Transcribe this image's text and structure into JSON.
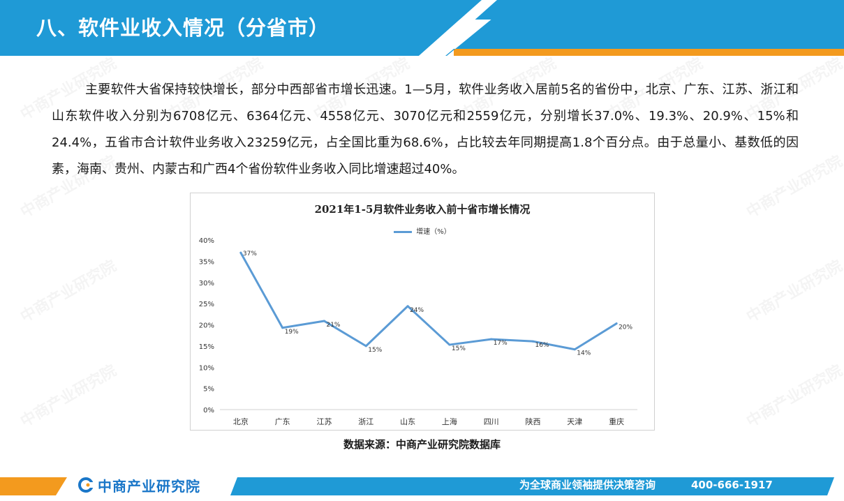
{
  "header": {
    "title": "八、软件业收入情况（分省市）"
  },
  "body": {
    "paragraph": "主要软件大省保持较快增长，部分中西部省市增长迅速。1—5月，软件业务收入居前5名的省份中，北京、广东、江苏、浙江和山东软件收入分别为6708亿元、6364亿元、4558亿元、3070亿元和2559亿元，分别增长37.0%、19.3%、20.9%、15%和24.4%，五省市合计软件业务收入23259亿元，占全国比重为68.6%，占比较去年同期提高1.8个百分点。由于总量小、基数低的因素，海南、贵州、内蒙古和广西4个省份软件业务收入同比增速超过40%。"
  },
  "chart_data": {
    "type": "line",
    "title": "2021年1-5月软件业务收入前十省市增长情况",
    "categories": [
      "北京",
      "广东",
      "江苏",
      "浙江",
      "山东",
      "上海",
      "四川",
      "陕西",
      "天津",
      "重庆"
    ],
    "series": [
      {
        "name": "增速（%）",
        "values": [
          37.0,
          19.3,
          20.9,
          15.0,
          24.4,
          15.3,
          16.6,
          16.1,
          14.2,
          20.3
        ],
        "labels": [
          "37%",
          "19%",
          "21%",
          "15%",
          "24%",
          "15%",
          "17%",
          "16%",
          "14%",
          "20%"
        ],
        "color": "#5b9bd5"
      }
    ],
    "y_ticks": [
      "0%",
      "5%",
      "10%",
      "15%",
      "20%",
      "25%",
      "30%",
      "35%",
      "40%"
    ],
    "ylim": [
      0,
      40
    ],
    "grid": false,
    "legend": "top-center"
  },
  "source": {
    "text": "数据来源：中商产业研究院数据库"
  },
  "footer": {
    "logo_text": "中商产业研究院",
    "slogan": "为全球商业领袖提供决策咨询",
    "phone": "400-666-1917"
  },
  "watermark": {
    "text": "中商产业研究院"
  },
  "colors": {
    "header_blue": "#1f9ad6",
    "accent_orange": "#f39a1e",
    "line_blue": "#5b9bd5",
    "logo_blue": "#1976c8"
  }
}
